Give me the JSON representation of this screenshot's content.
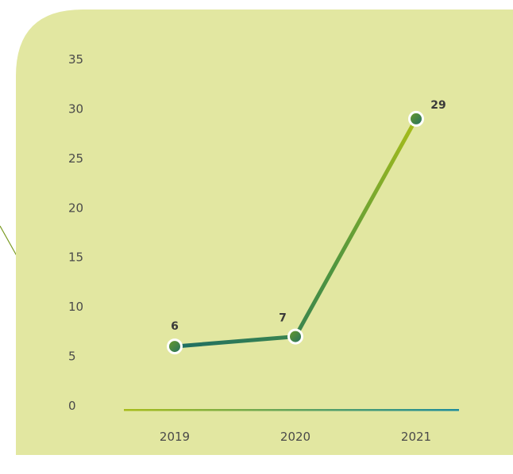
{
  "colors": {
    "panel": "#e2e7a1",
    "series_start": "#1f6e63",
    "series_mid": "#4f9540",
    "series_end": "#a8bd1a",
    "axis_start": "#a8bd1a",
    "axis_end": "#1e8c9c",
    "marker_fill_top": "#6d9c27",
    "marker_fill_bottom": "#1f6e63",
    "marker_stroke": "#ffffff",
    "tick_text": "#4a4a4a",
    "label_text": "#3a3a3a",
    "connector": "#7a9a22"
  },
  "chart_data": {
    "type": "line",
    "categories": [
      "2019",
      "2020",
      "2021"
    ],
    "series": [
      {
        "values": [
          6,
          7,
          29
        ]
      }
    ],
    "data_labels": [
      "6",
      "7",
      "29"
    ],
    "y_ticks": [
      "0",
      "5",
      "10",
      "15",
      "20",
      "25",
      "30",
      "35"
    ],
    "ylim": [
      0,
      35
    ],
    "grid": false,
    "legend": "none"
  }
}
